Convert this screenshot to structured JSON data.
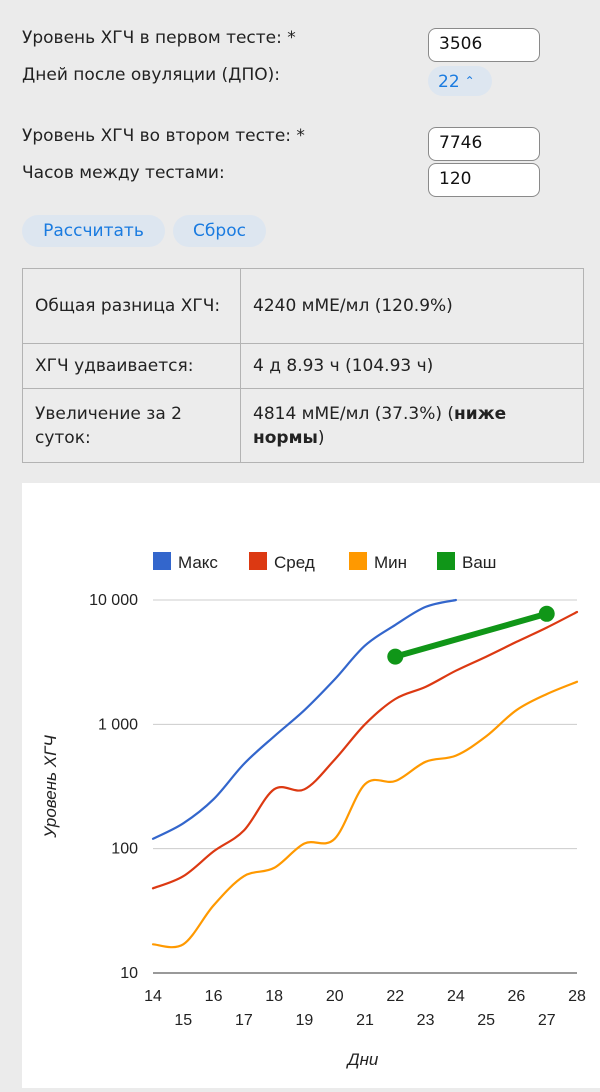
{
  "form": {
    "hcg1_label": "Уровень ХГЧ в первом тесте: *",
    "hcg1_value": "3506",
    "dpo_label": "Дней после овуляции (ДПО):",
    "dpo_value": "22",
    "hcg2_label": "Уровень ХГЧ во втором тесте: *",
    "hcg2_value": "7746",
    "hours_label": "Часов между тестами:",
    "hours_value": "120"
  },
  "buttons": {
    "calculate": "Рассчитать",
    "reset": "Сброс"
  },
  "results": {
    "rows": [
      {
        "label": "Общая разница ХГЧ:",
        "value": "4240 мМЕ/мл (120.9%)"
      },
      {
        "label": "ХГЧ удваивается:",
        "value": "4 д 8.93 ч (104.93 ч)"
      },
      {
        "label": "Увеличение за 2 суток:",
        "value_prefix": "4814 мМЕ/мл (37.3%) (",
        "value_bold": "ниже нормы",
        "value_suffix": ")"
      }
    ]
  },
  "colors": {
    "max": "#3366cc",
    "avg": "#dc3912",
    "min": "#ff9900",
    "yours": "#109618",
    "accent": "#1a7be0"
  },
  "chart_data": {
    "type": "line",
    "xlabel": "Дни",
    "ylabel": "Уровень ХГЧ",
    "y_scale": "log",
    "ylim": [
      10,
      10000
    ],
    "xlim": [
      14,
      28
    ],
    "y_ticks": [
      10,
      100,
      1000,
      10000
    ],
    "y_tick_labels": [
      "10",
      "100",
      "1 000",
      "10 000"
    ],
    "x_ticks": [
      14,
      15,
      16,
      17,
      18,
      19,
      20,
      21,
      22,
      23,
      24,
      25,
      26,
      27,
      28
    ],
    "grid": true,
    "legend_position": "top",
    "series": [
      {
        "name": "Макс",
        "x": [
          14,
          15,
          16,
          17,
          18,
          19,
          20,
          21,
          22,
          23,
          24
        ],
        "values": [
          120,
          160,
          250,
          480,
          800,
          1300,
          2300,
          4300,
          6300,
          8800,
          10000
        ]
      },
      {
        "name": "Сред",
        "x": [
          14,
          15,
          16,
          17,
          18,
          19,
          20,
          21,
          22,
          23,
          24,
          25,
          26,
          27,
          28
        ],
        "values": [
          48,
          60,
          95,
          140,
          300,
          300,
          520,
          1000,
          1600,
          2000,
          2700,
          3500,
          4600,
          6000,
          8000
        ]
      },
      {
        "name": "Мин",
        "x": [
          14,
          15,
          16,
          17,
          18,
          19,
          20,
          21,
          22,
          23,
          24,
          25,
          26,
          27,
          28
        ],
        "values": [
          17,
          17,
          35,
          60,
          70,
          110,
          120,
          330,
          350,
          500,
          560,
          800,
          1300,
          1750,
          2200
        ]
      },
      {
        "name": "Ваш",
        "x": [
          22,
          27
        ],
        "values": [
          3506,
          7746
        ]
      }
    ]
  }
}
